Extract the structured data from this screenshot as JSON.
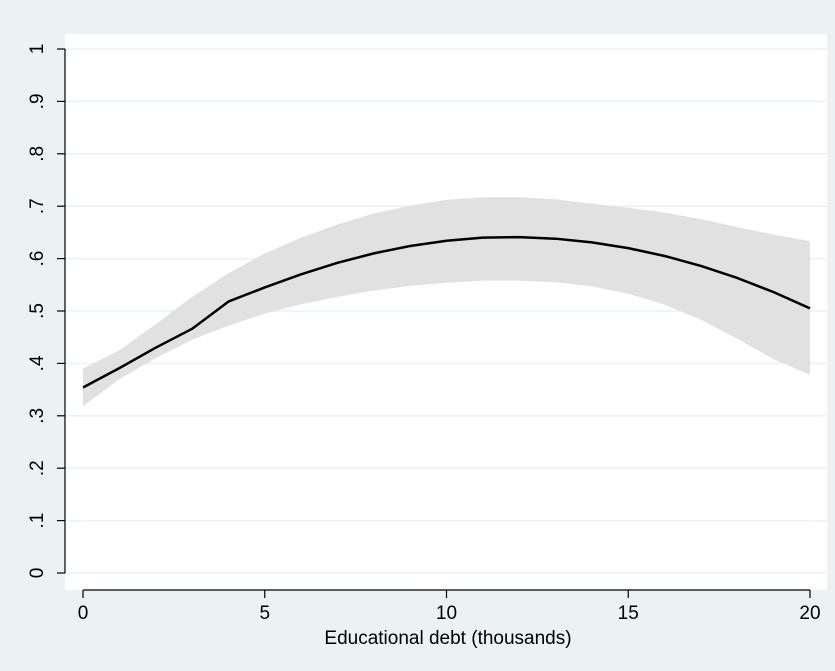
{
  "chart_data": {
    "type": "line",
    "title": "",
    "xlabel": "Educational debt (thousands)",
    "ylabel": "",
    "xlim": [
      0,
      20
    ],
    "ylim": [
      0,
      1
    ],
    "x_ticks": [
      0,
      5,
      10,
      15,
      20
    ],
    "x_tick_labels": [
      "0",
      "5",
      "10",
      "15",
      "20"
    ],
    "y_ticks": [
      0,
      0.1,
      0.2,
      0.3,
      0.4,
      0.5,
      0.6,
      0.7,
      0.8,
      0.9,
      1
    ],
    "y_tick_labels": [
      "0",
      ".1",
      ".2",
      ".3",
      ".4",
      ".5",
      ".6",
      ".7",
      ".8",
      ".9",
      "1"
    ],
    "grid": true,
    "legend": "none",
    "series": [
      {
        "kind": "confidence-band",
        "x": [
          0,
          1,
          2,
          3,
          4,
          5,
          6,
          7,
          8,
          9,
          10,
          11,
          12,
          13,
          14,
          15,
          16,
          17,
          18,
          19,
          20
        ],
        "lower": [
          0.318,
          0.37,
          0.41,
          0.445,
          0.472,
          0.495,
          0.513,
          0.527,
          0.539,
          0.548,
          0.554,
          0.558,
          0.558,
          0.555,
          0.547,
          0.533,
          0.512,
          0.483,
          0.447,
          0.408,
          0.378
        ],
        "upper": [
          0.39,
          0.425,
          0.475,
          0.527,
          0.572,
          0.61,
          0.64,
          0.665,
          0.686,
          0.701,
          0.712,
          0.717,
          0.717,
          0.713,
          0.705,
          0.697,
          0.688,
          0.675,
          0.66,
          0.646,
          0.633
        ]
      },
      {
        "kind": "fitted-line",
        "x": [
          0,
          1,
          2,
          3,
          4,
          5,
          6,
          7,
          8,
          9,
          10,
          11,
          12,
          13,
          14,
          15,
          16,
          17,
          18,
          19,
          20
        ],
        "values": [
          0.354,
          0.391,
          0.43,
          0.466,
          0.518,
          0.545,
          0.57,
          0.592,
          0.61,
          0.624,
          0.634,
          0.64,
          0.641,
          0.638,
          0.631,
          0.62,
          0.605,
          0.586,
          0.563,
          0.536,
          0.505
        ]
      }
    ],
    "colors": {
      "background": "#eaf2f3",
      "plot_area": "#ffffff",
      "grid": "#eaf2f3",
      "band": "#e1e1e1",
      "line": "#000000",
      "axis": "#000000"
    }
  }
}
